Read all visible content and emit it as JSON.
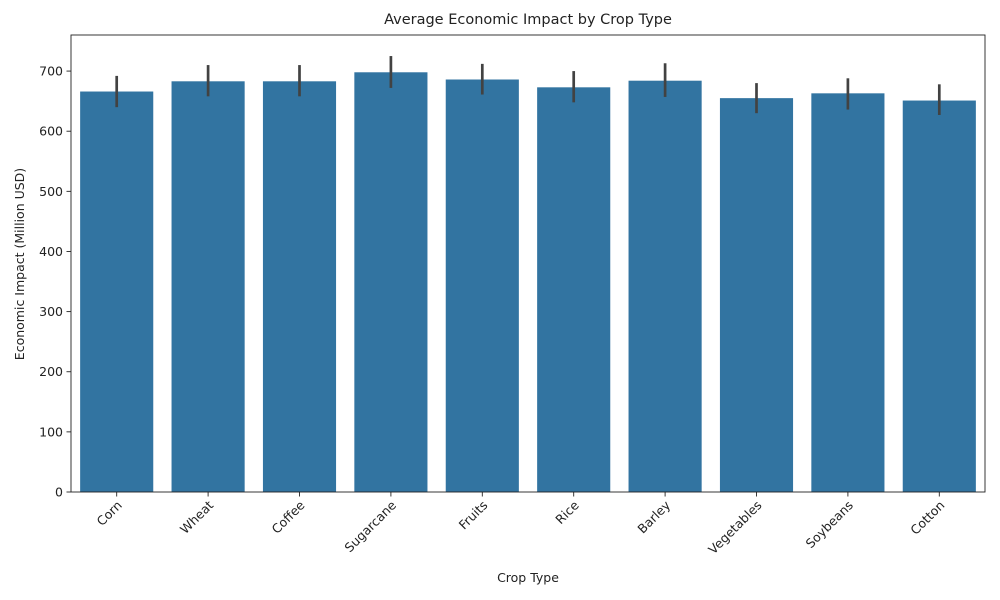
{
  "chart_data": {
    "type": "bar",
    "title": "Average Economic Impact by Crop Type",
    "xlabel": "Crop Type",
    "ylabel": "Economic Impact (Million USD)",
    "categories": [
      "Corn",
      "Wheat",
      "Coffee",
      "Sugarcane",
      "Fruits",
      "Rice",
      "Barley",
      "Vegetables",
      "Soybeans",
      "Cotton"
    ],
    "values": [
      666,
      683,
      683,
      698,
      686,
      673,
      684,
      655,
      663,
      651
    ],
    "error_low": [
      640,
      658,
      658,
      672,
      661,
      648,
      657,
      630,
      636,
      627
    ],
    "error_high": [
      692,
      710,
      710,
      725,
      712,
      700,
      713,
      680,
      688,
      678
    ],
    "ylim": [
      0,
      760
    ],
    "yticks": [
      0,
      100,
      200,
      300,
      400,
      500,
      600,
      700
    ],
    "bar_color": "#3274a1",
    "errorbar_color": "#424242",
    "grid": false
  }
}
